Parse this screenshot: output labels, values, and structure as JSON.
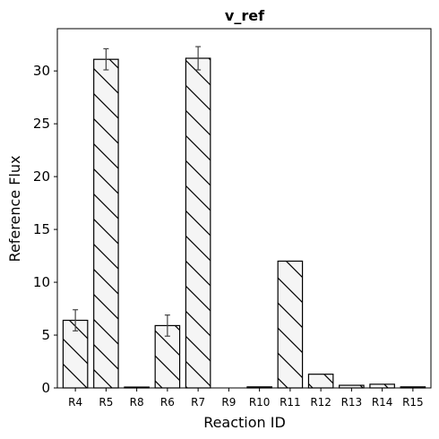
{
  "chart_data": {
    "type": "bar",
    "title": "v_ref",
    "xlabel": "Reaction ID",
    "ylabel": "Reference Flux",
    "categories": [
      "R4",
      "R5",
      "R8",
      "R6",
      "R7",
      "R9",
      "R10",
      "R11",
      "R12",
      "R13",
      "R14",
      "R15"
    ],
    "values": [
      6.4,
      31.1,
      0.08,
      5.9,
      31.2,
      0.0,
      0.1,
      12.0,
      1.3,
      0.25,
      0.35,
      0.1
    ],
    "errors": [
      1.0,
      1.0,
      0.0,
      1.0,
      1.1,
      0.0,
      0.0,
      0.0,
      0.0,
      0.0,
      0.0,
      0.0
    ],
    "ylim": [
      0,
      34
    ],
    "yticks": [
      0,
      5,
      10,
      15,
      20,
      25,
      30
    ],
    "grid": false,
    "bar_fill": "#f5f5f5",
    "bar_edge": "#000000",
    "bar_hatch": "diagonal",
    "error_color": "#444444"
  }
}
